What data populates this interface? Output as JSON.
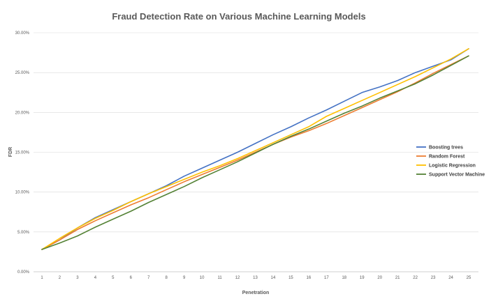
{
  "chart_data": {
    "type": "line",
    "title": "Fraud Detection Rate on Various Machine Learning Models",
    "xlabel": "Penetration",
    "ylabel": "FDR",
    "x": [
      1,
      2,
      3,
      4,
      5,
      6,
      7,
      8,
      9,
      10,
      11,
      12,
      13,
      14,
      15,
      16,
      17,
      18,
      19,
      20,
      21,
      22,
      23,
      24,
      25
    ],
    "ylim": [
      0,
      0.3
    ],
    "yticks": [
      0,
      0.05,
      0.1,
      0.15,
      0.2,
      0.25,
      0.3
    ],
    "ytick_labels": [
      "0.00%",
      "5.00%",
      "10.00%",
      "15.00%",
      "20.00%",
      "25.00%",
      "30.00%"
    ],
    "xtick_labels": [
      "1",
      "2",
      "3",
      "4",
      "5",
      "6",
      "7",
      "8",
      "9",
      "10",
      "11",
      "12",
      "13",
      "14",
      "15",
      "16",
      "17",
      "18",
      "19",
      "20",
      "21",
      "22",
      "23",
      "24",
      "25"
    ],
    "grid": true,
    "legend_position": "right",
    "series": [
      {
        "name": "Boosting trees",
        "color": "#4472C4",
        "values": [
          0.028,
          0.04,
          0.055,
          0.068,
          0.078,
          0.088,
          0.098,
          0.108,
          0.12,
          0.13,
          0.14,
          0.15,
          0.161,
          0.172,
          0.182,
          0.193,
          0.203,
          0.214,
          0.225,
          0.232,
          0.24,
          0.25,
          0.258,
          0.266,
          0.28
        ]
      },
      {
        "name": "Random Forest",
        "color": "#ED7D31",
        "values": [
          0.028,
          0.04,
          0.053,
          0.064,
          0.074,
          0.084,
          0.093,
          0.103,
          0.113,
          0.122,
          0.131,
          0.14,
          0.15,
          0.16,
          0.169,
          0.177,
          0.186,
          0.196,
          0.206,
          0.216,
          0.226,
          0.237,
          0.249,
          0.26,
          0.271
        ]
      },
      {
        "name": "Logistic Regression",
        "color": "#FFC000",
        "values": [
          0.028,
          0.042,
          0.055,
          0.067,
          0.077,
          0.088,
          0.098,
          0.107,
          0.116,
          0.125,
          0.133,
          0.142,
          0.152,
          0.162,
          0.172,
          0.182,
          0.195,
          0.205,
          0.215,
          0.225,
          0.235,
          0.245,
          0.256,
          0.267,
          0.28
        ]
      },
      {
        "name": "Support Vector Machine",
        "color": "#548235",
        "values": [
          0.028,
          0.036,
          0.045,
          0.056,
          0.066,
          0.076,
          0.087,
          0.097,
          0.107,
          0.118,
          0.128,
          0.138,
          0.149,
          0.16,
          0.17,
          0.179,
          0.189,
          0.199,
          0.208,
          0.218,
          0.227,
          0.236,
          0.247,
          0.259,
          0.271
        ]
      }
    ]
  }
}
